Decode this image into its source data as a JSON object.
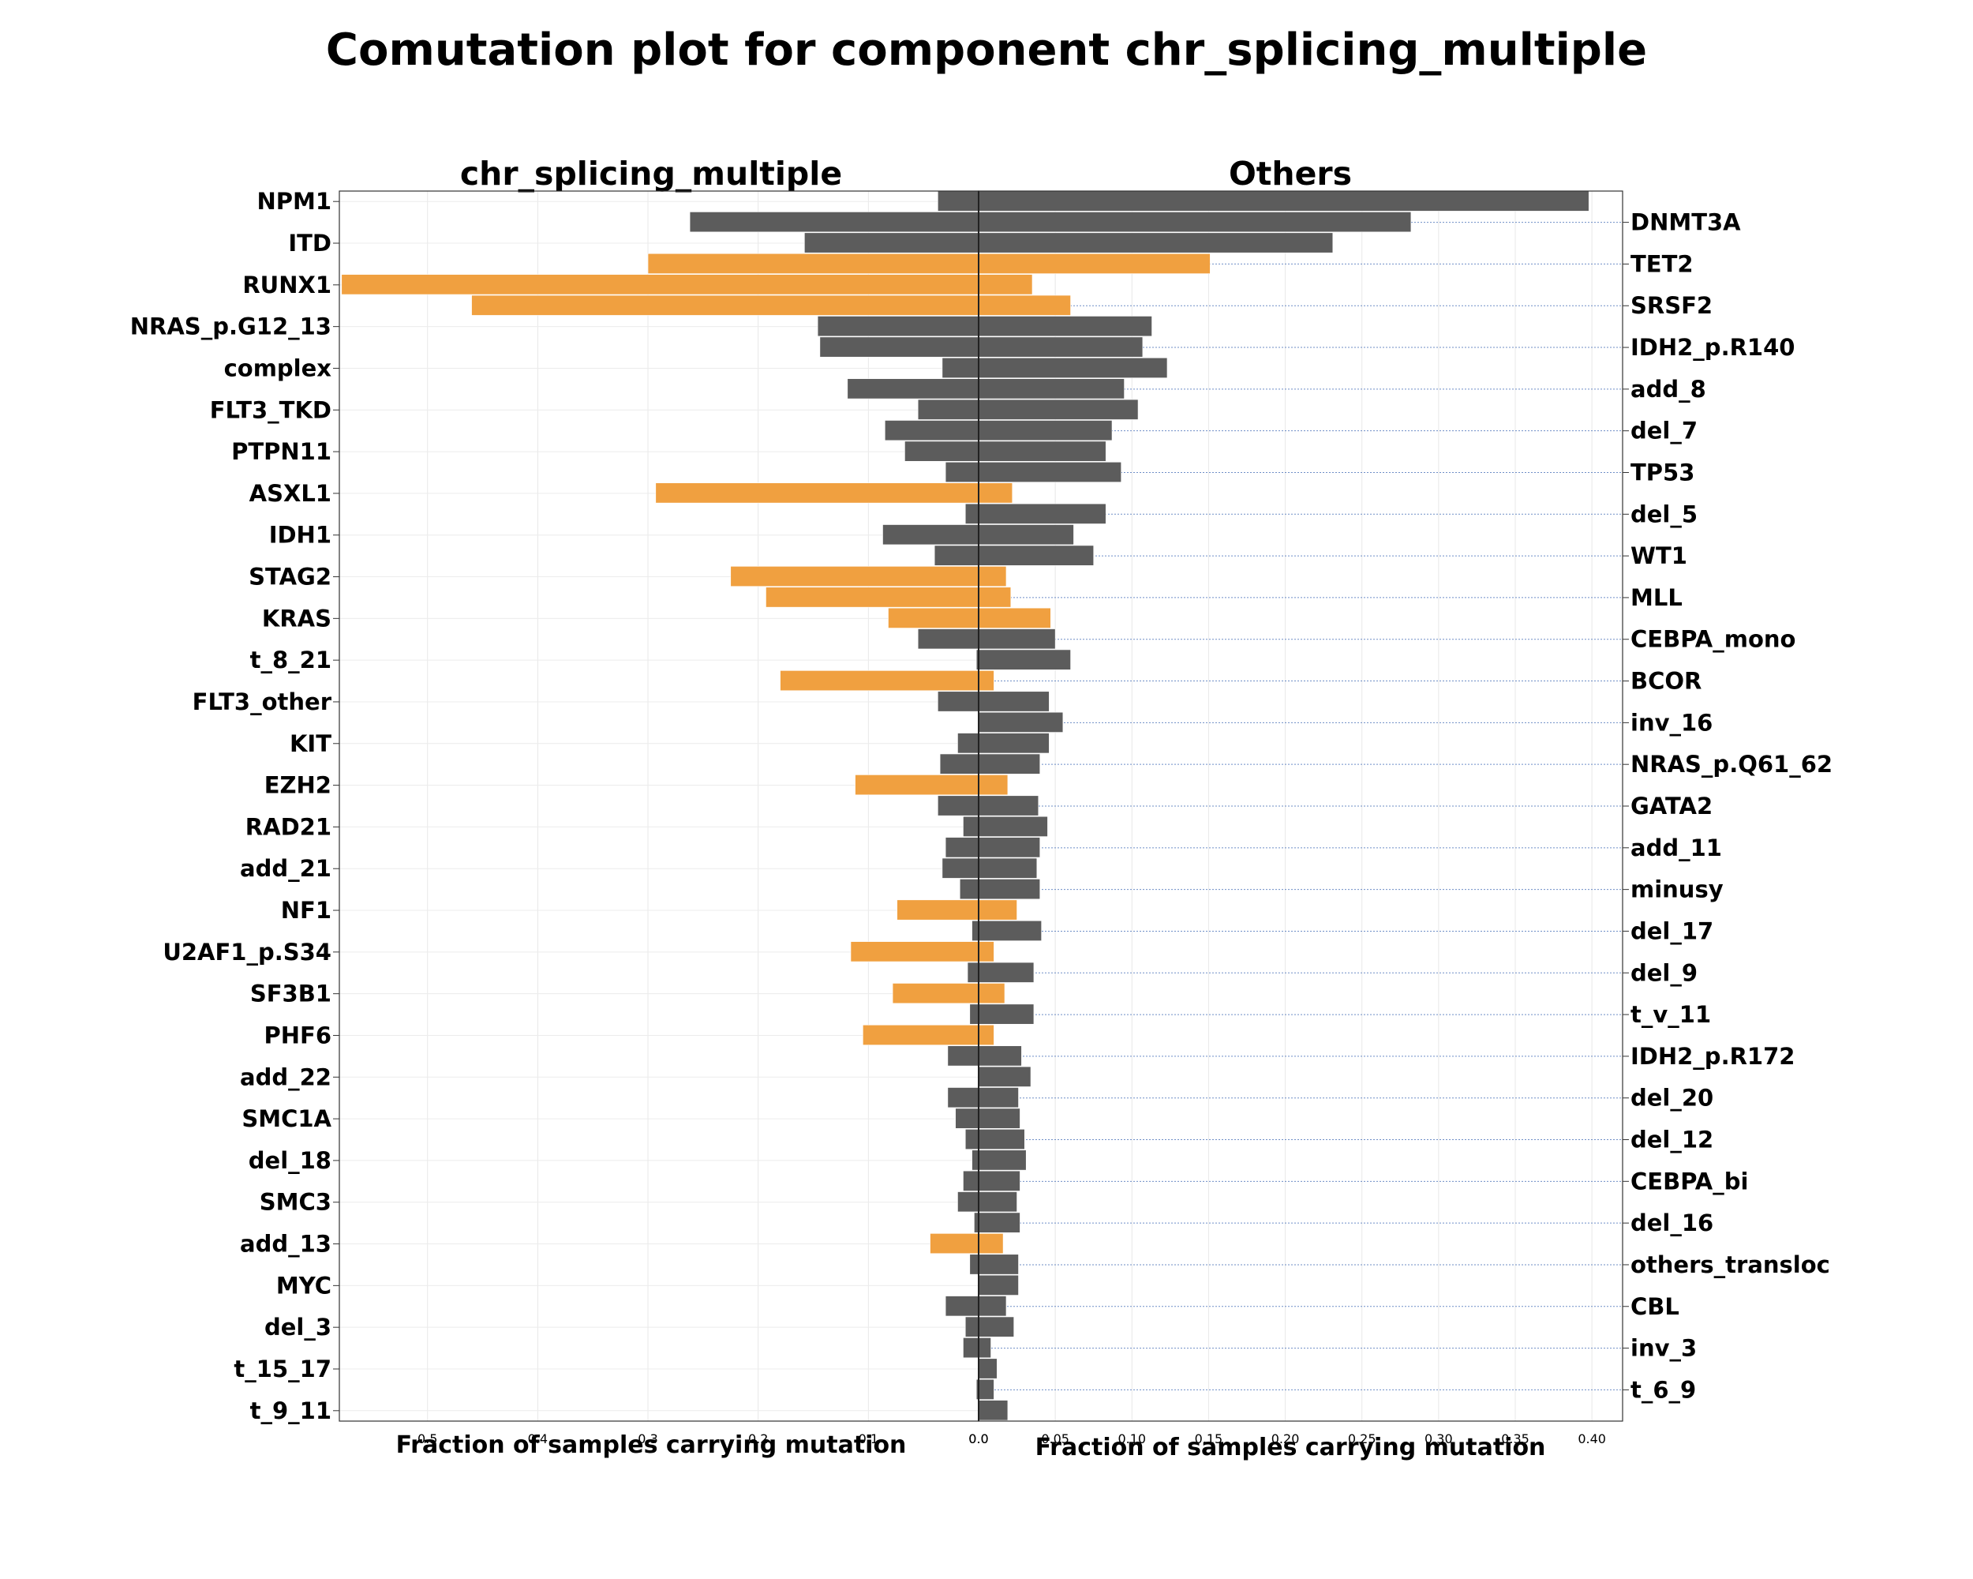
{
  "chart_data": {
    "type": "bar",
    "title": "Comutation plot for component chr_splicing_multiple",
    "left_panel": {
      "title": "chr_splicing_multiple",
      "xlabel": "Fraction of samples carrying mutation",
      "xlim": [
        0.58,
        0
      ],
      "ticks": [
        "0.5",
        "0.4",
        "0.3",
        "0.2",
        "0.1",
        "0.0"
      ],
      "tick_values": [
        0.5,
        0.4,
        0.3,
        0.2,
        0.1,
        0.0
      ]
    },
    "right_panel": {
      "title": "Others",
      "xlabel": "Fraction of samples carrying mutation",
      "xlim": [
        0,
        0.42
      ],
      "ticks": [
        "0.0",
        "0.05",
        "0.10",
        "0.15",
        "0.20",
        "0.25",
        "0.30",
        "0.35",
        "0.40"
      ],
      "tick_values": [
        0.0,
        0.05,
        0.1,
        0.15,
        0.2,
        0.25,
        0.3,
        0.35,
        0.4
      ]
    },
    "colors": {
      "enriched": "#f0a040",
      "default": "#5c5c5c"
    },
    "categories": [
      "NPM1",
      "DNMT3A",
      "ITD",
      "TET2",
      "RUNX1",
      "SRSF2",
      "NRAS_p.G12_13",
      "IDH2_p.R140",
      "complex",
      "add_8",
      "FLT3_TKD",
      "del_7",
      "PTPN11",
      "TP53",
      "ASXL1",
      "del_5",
      "IDH1",
      "WT1",
      "STAG2",
      "MLL",
      "KRAS",
      "CEBPA_mono",
      "t_8_21",
      "BCOR",
      "FLT3_other",
      "inv_16",
      "KIT",
      "NRAS_p.Q61_62",
      "EZH2",
      "GATA2",
      "RAD21",
      "add_11",
      "add_21",
      "minusy",
      "NF1",
      "del_17",
      "U2AF1_p.S34",
      "del_9",
      "SF3B1",
      "t_v_11",
      "PHF6",
      "IDH2_p.R172",
      "add_22",
      "del_20",
      "SMC1A",
      "del_12",
      "del_18",
      "CEBPA_bi",
      "SMC3",
      "del_16",
      "add_13",
      "others_transloc",
      "MYC",
      "CBL",
      "del_3",
      "inv_3",
      "t_15_17",
      "t_6_9",
      "t_9_11"
    ],
    "left_labels": [
      "NPM1",
      "ITD",
      "RUNX1",
      "NRAS_p.G12_13",
      "complex",
      "FLT3_TKD",
      "PTPN11",
      "ASXL1",
      "IDH1",
      "STAG2",
      "KRAS",
      "t_8_21",
      "FLT3_other",
      "KIT",
      "EZH2",
      "RAD21",
      "add_21",
      "NF1",
      "U2AF1_p.S34",
      "SF3B1",
      "PHF6",
      "add_22",
      "SMC1A",
      "del_18",
      "SMC3",
      "add_13",
      "MYC",
      "del_3",
      "t_15_17",
      "t_9_11"
    ],
    "right_labels": [
      "DNMT3A",
      "TET2",
      "SRSF2",
      "IDH2_p.R140",
      "add_8",
      "del_7",
      "TP53",
      "del_5",
      "WT1",
      "MLL",
      "CEBPA_mono",
      "BCOR",
      "inv_16",
      "NRAS_p.Q61_62",
      "GATA2",
      "add_11",
      "minusy",
      "del_17",
      "del_9",
      "t_v_11",
      "IDH2_p.R172",
      "del_20",
      "del_12",
      "CEBPA_bi",
      "del_16",
      "others_transloc",
      "CBL",
      "inv_3",
      "t_6_9"
    ],
    "series": [
      {
        "name": "chr_splicing_multiple",
        "values": [
          0.037,
          0.262,
          0.158,
          0.3,
          0.578,
          0.46,
          0.146,
          0.144,
          0.033,
          0.119,
          0.055,
          0.085,
          0.067,
          0.03,
          0.293,
          0.012,
          0.087,
          0.04,
          0.225,
          0.193,
          0.082,
          0.055,
          0.002,
          0.18,
          0.037,
          0.0,
          0.019,
          0.035,
          0.112,
          0.037,
          0.014,
          0.03,
          0.033,
          0.017,
          0.074,
          0.006,
          0.116,
          0.01,
          0.078,
          0.008,
          0.105,
          0.028,
          0.0,
          0.028,
          0.021,
          0.012,
          0.006,
          0.014,
          0.019,
          0.004,
          0.044,
          0.008,
          0.0,
          0.03,
          0.012,
          0.014,
          0.0,
          0.002,
          0.0
        ],
        "enriched": [
          false,
          false,
          false,
          true,
          true,
          true,
          false,
          false,
          false,
          false,
          false,
          false,
          false,
          false,
          true,
          false,
          false,
          false,
          true,
          true,
          true,
          false,
          false,
          true,
          false,
          false,
          false,
          false,
          true,
          false,
          false,
          false,
          false,
          false,
          true,
          false,
          true,
          false,
          true,
          false,
          true,
          false,
          false,
          false,
          false,
          false,
          false,
          false,
          false,
          false,
          true,
          false,
          false,
          false,
          false,
          false,
          false,
          false,
          false
        ]
      },
      {
        "name": "Others",
        "values": [
          0.398,
          0.282,
          0.231,
          0.151,
          0.035,
          0.06,
          0.113,
          0.107,
          0.123,
          0.095,
          0.104,
          0.087,
          0.083,
          0.093,
          0.022,
          0.083,
          0.062,
          0.075,
          0.018,
          0.021,
          0.047,
          0.05,
          0.06,
          0.01,
          0.046,
          0.055,
          0.046,
          0.04,
          0.019,
          0.039,
          0.045,
          0.04,
          0.038,
          0.04,
          0.025,
          0.041,
          0.01,
          0.036,
          0.017,
          0.036,
          0.01,
          0.028,
          0.034,
          0.026,
          0.027,
          0.03,
          0.031,
          0.027,
          0.025,
          0.027,
          0.016,
          0.026,
          0.026,
          0.018,
          0.023,
          0.008,
          0.012,
          0.01,
          0.019
        ],
        "enriched": [
          false,
          false,
          false,
          true,
          true,
          true,
          false,
          false,
          false,
          false,
          false,
          false,
          false,
          false,
          true,
          false,
          false,
          false,
          true,
          true,
          true,
          false,
          false,
          true,
          false,
          false,
          false,
          false,
          true,
          false,
          false,
          false,
          false,
          false,
          true,
          false,
          true,
          false,
          true,
          false,
          true,
          false,
          false,
          false,
          false,
          false,
          false,
          false,
          false,
          false,
          true,
          false,
          false,
          false,
          false,
          false,
          false,
          false,
          false
        ]
      }
    ]
  }
}
